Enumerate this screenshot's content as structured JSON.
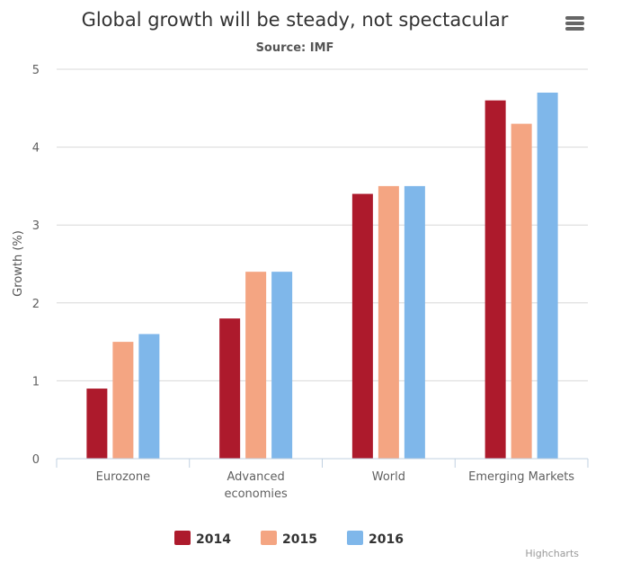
{
  "chart_data": {
    "type": "bar",
    "title": "Global growth will be steady, not spectacular",
    "subtitle": "Source: IMF",
    "ylabel": "Growth (%)",
    "xlabel": "",
    "ylim": [
      0,
      5
    ],
    "yticks": [
      "0",
      "1",
      "2",
      "3",
      "4",
      "5"
    ],
    "categories": [
      "Eurozone",
      "Advanced economies",
      "World",
      "Emerging Markets"
    ],
    "series": [
      {
        "name": "2014",
        "color": "#ad1a2c",
        "values": [
          0.9,
          1.8,
          3.4,
          4.6
        ]
      },
      {
        "name": "2015",
        "color": "#f4a582",
        "values": [
          1.5,
          2.4,
          3.5,
          4.3
        ]
      },
      {
        "name": "2016",
        "color": "#7fb7ea",
        "values": [
          1.6,
          2.4,
          3.5,
          4.7
        ]
      }
    ],
    "grid": true,
    "legend_position": "bottom-center",
    "credits": "Highcharts"
  },
  "menu": {
    "icon": "hamburger-menu-icon"
  }
}
